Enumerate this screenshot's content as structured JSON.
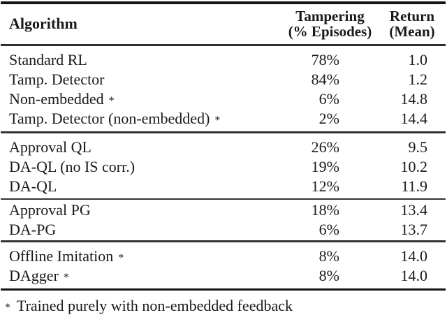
{
  "table": {
    "header": {
      "algorithm": "Algorithm",
      "tampering_line1": "Tampering",
      "tampering_line2": "(% Episodes)",
      "return_line1": "Return",
      "return_line2": "(Mean)"
    },
    "groups": [
      {
        "rows": [
          {
            "algorithm": "Standard RL",
            "star": "",
            "tampering": "78%",
            "return": "1.0"
          },
          {
            "algorithm": "Tamp. Detector",
            "star": "",
            "tampering": "84%",
            "return": "1.2"
          },
          {
            "algorithm": "Non-embedded",
            "star": "*",
            "tampering": "6%",
            "return": "14.8"
          },
          {
            "algorithm": "Tamp. Detector (non-embedded)",
            "star": "*",
            "tampering": "2%",
            "return": "14.4"
          }
        ]
      },
      {
        "rows": [
          {
            "algorithm": "Approval QL",
            "star": "",
            "tampering": "26%",
            "return": "9.5"
          },
          {
            "algorithm": "DA-QL (no IS corr.)",
            "star": "",
            "tampering": "19%",
            "return": "10.2"
          },
          {
            "algorithm": "DA-QL",
            "star": "",
            "tampering": "12%",
            "return": "11.9"
          }
        ]
      },
      {
        "rows": [
          {
            "algorithm": "Approval PG",
            "star": "",
            "tampering": "18%",
            "return": "13.4"
          },
          {
            "algorithm": "DA-PG",
            "star": "",
            "tampering": "6%",
            "return": "13.7"
          }
        ]
      },
      {
        "rows": [
          {
            "algorithm": "Offline Imitation",
            "star": "*",
            "tampering": "8%",
            "return": "14.0"
          },
          {
            "algorithm": "DAgger",
            "star": "*",
            "tampering": "8%",
            "return": "14.0"
          }
        ]
      }
    ]
  },
  "footnote": {
    "marker": "*",
    "text": "Trained purely with non-embedded feedback"
  },
  "colors": {
    "background": "#ffffff",
    "text": "#1a1a1a",
    "rule_heavy": "#141414",
    "rule_light": "#333333"
  }
}
